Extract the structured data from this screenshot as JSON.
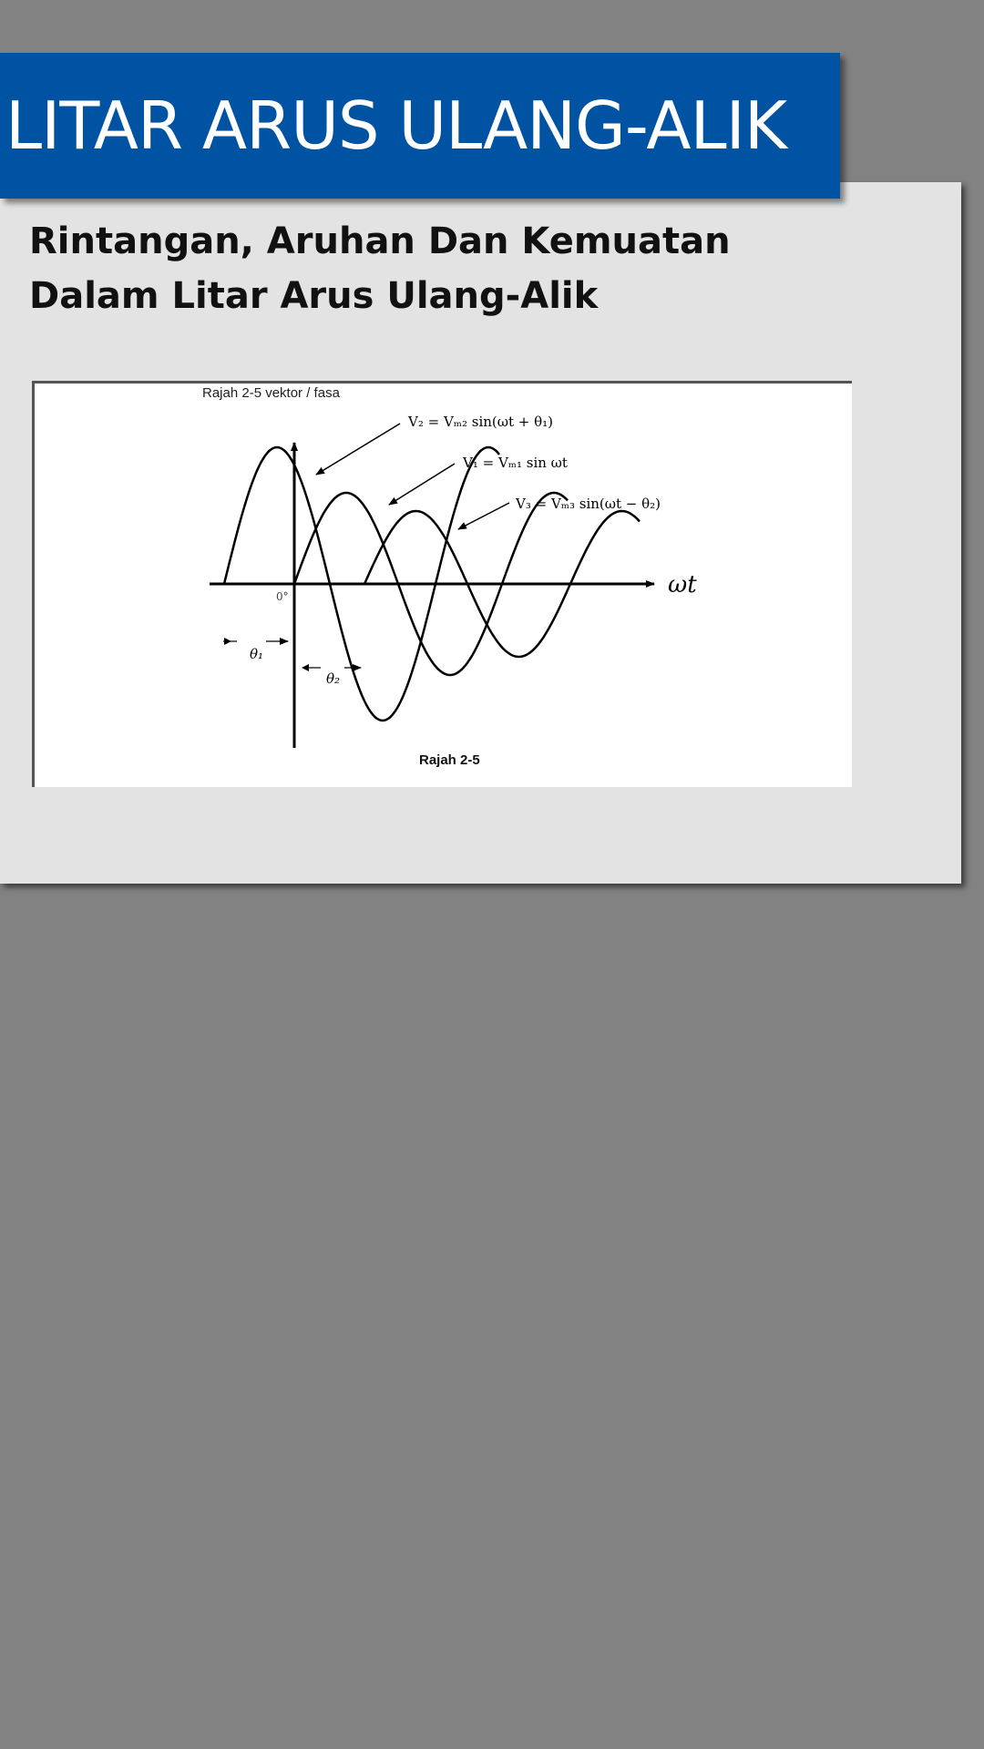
{
  "slide": {
    "title": "LITAR ARUS ULANG-ALIK",
    "subtitle_line1": "Rintangan, Aruhan Dan Kemuatan",
    "subtitle_line2": "Dalam Litar Arus Ulang-Alik"
  },
  "figure": {
    "heading": "Rajah 2-5 vektor / fasa",
    "caption": "Rajah 2-5",
    "axis_label": "ωt",
    "origin_label": "0°",
    "theta1_label": "θ₁",
    "theta2_label": "θ₂",
    "eq_v2": "V₂ = Vₘ₂ sin(ωt + θ₁)",
    "eq_v1": "V₁ = Vₘ₁ sin ωt",
    "eq_v3": "V₃ = Vₘ₃ sin(ωt − θ₂)"
  },
  "colors": {
    "banner": "#0052a3",
    "card": "#e3e3e3",
    "background": "#828282"
  }
}
